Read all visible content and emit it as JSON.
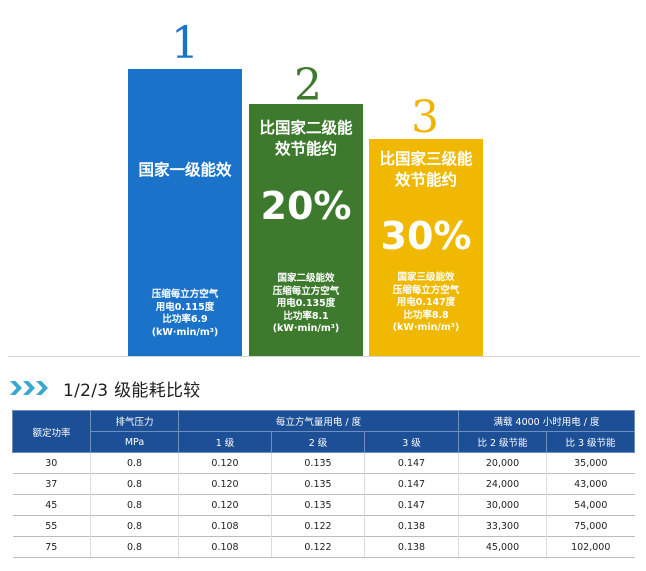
{
  "ranks": [
    "1",
    "2",
    "3"
  ],
  "columns": [
    {
      "title_lines": [
        "国家一级能效"
      ],
      "percent": "",
      "note_lines": [
        "压缩每立方空气",
        "用电0.115度",
        "比功率6.9",
        "(kW·min/m³)"
      ]
    },
    {
      "title_lines": [
        "比国家二级能",
        "效节能约"
      ],
      "percent": "20%",
      "note_lines": [
        "国家二级能效",
        "压缩每立方空气",
        "用电0.135度",
        "比功率8.1",
        "(kW·min/m³)"
      ]
    },
    {
      "title_lines": [
        "比国家三级能",
        "效节能约"
      ],
      "percent": "30%",
      "note_lines": [
        "国家三级能效",
        "压缩每立方空气",
        "用电0.147度",
        "比功率8.8",
        "(kW·min/m³)"
      ]
    }
  ],
  "colors": {
    "level1": "#1a73c9",
    "level2": "#3e7a2e",
    "level3": "#f1b800",
    "table_header": "#1d4f96",
    "chevron": "#3aa7cf"
  },
  "section": {
    "title": "1/2/3 级能耗比较",
    "icon": "triple-chevron-right-icon"
  },
  "table": {
    "header_row1": [
      "额定功率",
      "排气压力",
      "每立方气量用电 / 度",
      "满载 4000 小时用电 / 度"
    ],
    "header_row2": [
      "MPa",
      "1 级",
      "2 级",
      "3 级",
      "比 2 级节能",
      "比 3 级节能"
    ],
    "rows": [
      [
        "30",
        "0.8",
        "0.120",
        "0.135",
        "0.147",
        "20,000",
        "35,000"
      ],
      [
        "37",
        "0.8",
        "0.120",
        "0.135",
        "0.147",
        "24,000",
        "43,000"
      ],
      [
        "45",
        "0.8",
        "0.120",
        "0.135",
        "0.147",
        "30,000",
        "54,000"
      ],
      [
        "55",
        "0.8",
        "0.108",
        "0.122",
        "0.138",
        "33,300",
        "75,000"
      ],
      [
        "75",
        "0.8",
        "0.108",
        "0.122",
        "0.138",
        "45,000",
        "102,000"
      ]
    ]
  },
  "chart_data": {
    "type": "table",
    "title": "1/2/3 级能耗比较",
    "columns": [
      "额定功率",
      "排气压力 MPa",
      "1 级",
      "2 级",
      "3 级",
      "比 2 级节能",
      "比 3 级节能"
    ],
    "rows": [
      [
        30,
        0.8,
        0.12,
        0.135,
        0.147,
        20000,
        35000
      ],
      [
        37,
        0.8,
        0.12,
        0.135,
        0.147,
        24000,
        43000
      ],
      [
        45,
        0.8,
        0.12,
        0.135,
        0.147,
        30000,
        54000
      ],
      [
        55,
        0.8,
        0.108,
        0.122,
        0.138,
        33300,
        75000
      ],
      [
        75,
        0.8,
        0.108,
        0.122,
        0.138,
        45000,
        102000
      ]
    ],
    "ranking": {
      "type": "bar",
      "categories": [
        "1",
        "2",
        "3"
      ],
      "specific_power_kw_min_per_m3": [
        6.9,
        8.1,
        8.8
      ],
      "kwh_per_m3": [
        0.115,
        0.135,
        0.147
      ],
      "saving_vs_level1_percent": [
        null,
        20,
        30
      ]
    }
  }
}
